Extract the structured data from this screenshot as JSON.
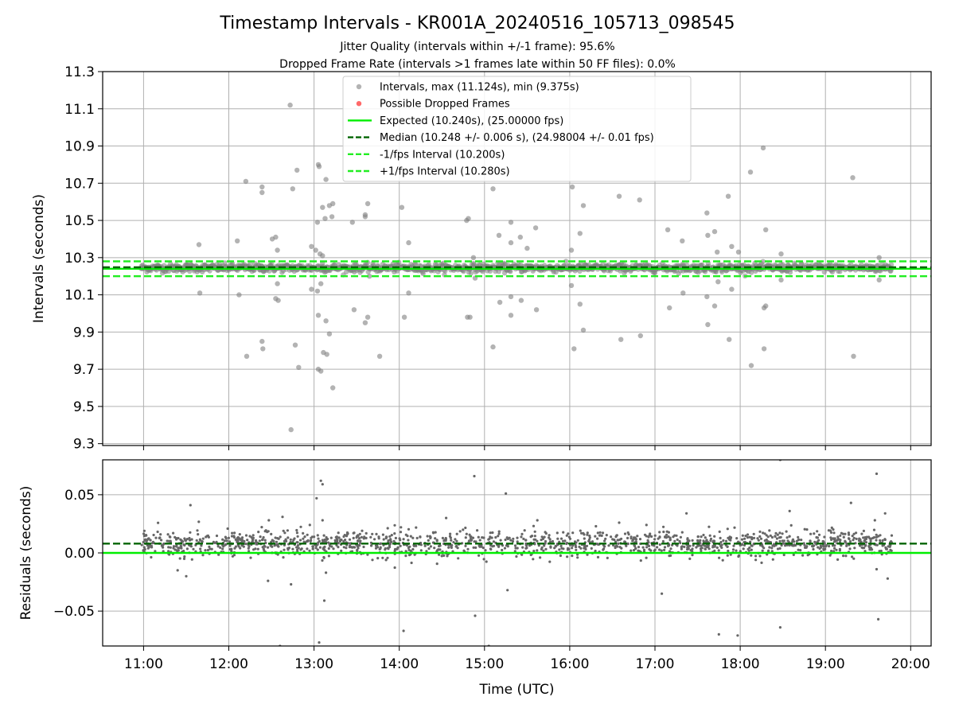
{
  "title": "Timestamp Intervals - KR001A_20240516_105713_098545",
  "subtitle1": "Jitter Quality (intervals within +/-1 frame): 95.6%",
  "subtitle2": "Dropped Frame Rate (intervals >1 frames late within 50 FF files): 0.0%",
  "colors": {
    "points": "#808080",
    "dropped": "#ff4444",
    "expected": "#00ee00",
    "median": "#006400",
    "fps_interval": "#22ee22",
    "grid": "#b0b0b0"
  },
  "chart_data": [
    {
      "type": "scatter",
      "ylabel": "Intervals (seconds)",
      "xlabel": "",
      "xlim": [
        10.52,
        20.24
      ],
      "ylim": [
        9.29,
        11.3
      ],
      "yticks": [
        "9.3",
        "9.5",
        "9.7",
        "9.9",
        "10.1",
        "10.3",
        "10.5",
        "10.7",
        "10.9",
        "11.1",
        "11.3"
      ],
      "grid": true,
      "legend_placement": "top-center",
      "legend": [
        {
          "label": "Intervals, max (11.124s), min (9.375s)",
          "marker": "dot",
          "color": "#808080"
        },
        {
          "label": "Possible Dropped Frames",
          "marker": "dot",
          "color": "#ff4444"
        },
        {
          "label": "Expected (10.240s), (25.00000 fps)",
          "marker": "line-solid",
          "color": "#00ee00"
        },
        {
          "label": "Median (10.248 +/- 0.006 s), (24.98004 +/- 0.01 fps)",
          "marker": "line-dash",
          "color": "#006400"
        },
        {
          "label": "-1/fps Interval (10.200s)",
          "marker": "line-dash",
          "color": "#22ee22"
        },
        {
          "label": "+1/fps Interval (10.280s)",
          "marker": "line-dash",
          "color": "#22ee22"
        }
      ],
      "hlines": {
        "expected": 10.24,
        "median": 10.248,
        "minus_fps": 10.2,
        "plus_fps": 10.28
      },
      "dense_band": {
        "x_start": 10.97,
        "x_end": 19.78,
        "y_center": 10.245,
        "spread": 0.018
      },
      "outliers": [
        [
          11.65,
          10.37
        ],
        [
          11.66,
          10.11
        ],
        [
          12.1,
          10.39
        ],
        [
          12.12,
          10.1
        ],
        [
          12.2,
          10.71
        ],
        [
          12.21,
          9.77
        ],
        [
          12.39,
          10.68
        ],
        [
          12.39,
          10.65
        ],
        [
          12.39,
          9.85
        ],
        [
          12.4,
          9.81
        ],
        [
          12.51,
          10.4
        ],
        [
          12.55,
          10.41
        ],
        [
          12.55,
          10.08
        ],
        [
          12.57,
          10.34
        ],
        [
          12.57,
          10.16
        ],
        [
          12.58,
          10.07
        ],
        [
          12.72,
          11.12
        ],
        [
          12.73,
          9.375
        ],
        [
          12.75,
          10.67
        ],
        [
          12.78,
          9.83
        ],
        [
          12.8,
          10.77
        ],
        [
          12.82,
          9.71
        ],
        [
          12.97,
          10.36
        ],
        [
          12.97,
          10.13
        ],
        [
          13.02,
          10.34
        ],
        [
          13.04,
          10.49
        ],
        [
          13.04,
          10.12
        ],
        [
          13.05,
          9.99
        ],
        [
          13.05,
          9.7
        ],
        [
          13.05,
          10.8
        ],
        [
          13.06,
          10.79
        ],
        [
          13.07,
          10.32
        ],
        [
          13.08,
          10.16
        ],
        [
          13.08,
          9.69
        ],
        [
          13.1,
          10.57
        ],
        [
          13.1,
          10.31
        ],
        [
          13.1,
          10.27
        ],
        [
          13.11,
          9.79
        ],
        [
          13.13,
          10.51
        ],
        [
          13.14,
          10.72
        ],
        [
          13.14,
          9.96
        ],
        [
          13.15,
          9.78
        ],
        [
          13.18,
          10.58
        ],
        [
          13.18,
          9.89
        ],
        [
          13.21,
          10.52
        ],
        [
          13.22,
          10.59
        ],
        [
          13.22,
          9.6
        ],
        [
          13.45,
          10.49
        ],
        [
          13.47,
          10.02
        ],
        [
          13.6,
          10.53
        ],
        [
          13.6,
          10.52
        ],
        [
          13.6,
          9.95
        ],
        [
          13.63,
          10.59
        ],
        [
          13.63,
          9.98
        ],
        [
          13.65,
          10.2
        ],
        [
          13.77,
          9.77
        ],
        [
          14.03,
          10.57
        ],
        [
          14.06,
          9.98
        ],
        [
          14.11,
          10.38
        ],
        [
          14.11,
          10.11
        ],
        [
          14.79,
          10.5
        ],
        [
          14.81,
          10.51
        ],
        [
          14.8,
          9.98
        ],
        [
          14.83,
          9.98
        ],
        [
          14.87,
          10.3
        ],
        [
          14.89,
          10.19
        ],
        [
          15.1,
          10.67
        ],
        [
          15.1,
          9.82
        ],
        [
          15.17,
          10.42
        ],
        [
          15.18,
          10.06
        ],
        [
          15.31,
          10.49
        ],
        [
          15.31,
          10.38
        ],
        [
          15.31,
          10.09
        ],
        [
          15.31,
          9.99
        ],
        [
          15.42,
          10.41
        ],
        [
          15.43,
          10.07
        ],
        [
          15.5,
          10.35
        ],
        [
          15.6,
          10.46
        ],
        [
          15.61,
          10.02
        ],
        [
          16.02,
          10.34
        ],
        [
          16.03,
          10.68
        ],
        [
          16.02,
          10.15
        ],
        [
          16.05,
          9.81
        ],
        [
          16.12,
          10.43
        ],
        [
          16.12,
          10.05
        ],
        [
          16.16,
          10.58
        ],
        [
          16.16,
          9.91
        ],
        [
          16.58,
          10.63
        ],
        [
          16.6,
          9.86
        ],
        [
          16.82,
          10.61
        ],
        [
          16.83,
          9.88
        ],
        [
          17.15,
          10.45
        ],
        [
          17.17,
          10.03
        ],
        [
          17.32,
          10.39
        ],
        [
          17.33,
          10.11
        ],
        [
          17.61,
          10.54
        ],
        [
          17.62,
          10.42
        ],
        [
          17.61,
          10.09
        ],
        [
          17.62,
          9.94
        ],
        [
          17.7,
          10.44
        ],
        [
          17.7,
          10.04
        ],
        [
          17.73,
          10.33
        ],
        [
          17.74,
          10.17
        ],
        [
          17.86,
          10.63
        ],
        [
          17.87,
          9.86
        ],
        [
          17.9,
          10.36
        ],
        [
          17.9,
          10.13
        ],
        [
          17.98,
          10.33
        ],
        [
          18.12,
          10.76
        ],
        [
          18.13,
          9.72
        ],
        [
          18.27,
          10.89
        ],
        [
          18.28,
          10.03
        ],
        [
          18.28,
          9.81
        ],
        [
          18.3,
          10.45
        ],
        [
          18.3,
          10.04
        ],
        [
          18.48,
          10.32
        ],
        [
          18.48,
          10.18
        ],
        [
          19.32,
          10.73
        ],
        [
          19.33,
          9.77
        ],
        [
          19.63,
          10.3
        ],
        [
          19.63,
          10.18
        ],
        [
          19.71,
          10.26
        ]
      ]
    },
    {
      "type": "scatter",
      "ylabel": "Residuals (seconds)",
      "xlabel": "Time (UTC)",
      "xlim": [
        10.52,
        20.24
      ],
      "ylim": [
        -0.08,
        0.08
      ],
      "yticks": [
        "−0.05",
        "0.00",
        "0.05"
      ],
      "yticks_values": [
        -0.05,
        0.0,
        0.05
      ],
      "xticks": [
        "11:00",
        "12:00",
        "13:00",
        "14:00",
        "15:00",
        "16:00",
        "17:00",
        "18:00",
        "19:00",
        "20:00"
      ],
      "xticks_values": [
        11,
        12,
        13,
        14,
        15,
        16,
        17,
        18,
        19,
        20
      ],
      "grid": true,
      "hlines": {
        "expected": 0.0,
        "median": 0.008
      },
      "dense_band": {
        "x_start": 10.97,
        "x_end": 19.78,
        "y_center": 0.008,
        "spread": 0.0055
      },
      "outliers": [
        [
          11.55,
          0.041
        ],
        [
          11.4,
          -0.015
        ],
        [
          11.5,
          -0.02
        ],
        [
          12.47,
          0.028
        ],
        [
          12.46,
          -0.024
        ],
        [
          12.6,
          -0.08
        ],
        [
          12.63,
          0.031
        ],
        [
          12.73,
          -0.027
        ],
        [
          12.95,
          0.024
        ],
        [
          13.03,
          0.047
        ],
        [
          13.08,
          0.062
        ],
        [
          13.1,
          0.059
        ],
        [
          13.06,
          -0.077
        ],
        [
          13.12,
          -0.041
        ],
        [
          13.1,
          0.028
        ],
        [
          13.14,
          -0.017
        ],
        [
          14.02,
          0.022
        ],
        [
          14.05,
          -0.067
        ],
        [
          14.55,
          0.03
        ],
        [
          14.88,
          0.066
        ],
        [
          14.89,
          -0.054
        ],
        [
          15.05,
          -0.08
        ],
        [
          15.25,
          0.051
        ],
        [
          15.27,
          -0.032
        ],
        [
          15.62,
          0.028
        ],
        [
          16.55,
          0.015
        ],
        [
          16.58,
          0.026
        ],
        [
          16.9,
          0.024
        ],
        [
          17.08,
          -0.035
        ],
        [
          17.37,
          0.034
        ],
        [
          17.75,
          -0.07
        ],
        [
          17.97,
          -0.071
        ],
        [
          18.47,
          0.08
        ],
        [
          18.47,
          -0.064
        ],
        [
          18.58,
          0.036
        ],
        [
          19.3,
          0.043
        ],
        [
          19.58,
          0.028
        ],
        [
          19.6,
          0.068
        ],
        [
          19.62,
          -0.057
        ],
        [
          19.6,
          -0.014
        ],
        [
          19.7,
          0.034
        ],
        [
          19.73,
          -0.022
        ]
      ]
    }
  ]
}
